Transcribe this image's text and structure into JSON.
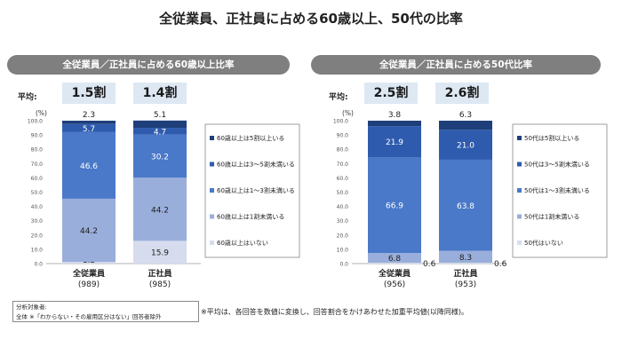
{
  "title": "全従業員、正社員に占める60歳以上、50代の比率",
  "panels": [
    {
      "header": "全従業員／正社員に占める60歳以上比率",
      "avg_label": "平均:",
      "averages": [
        "1.5割",
        "1.4割"
      ]
    },
    {
      "header": "全従業員／正社員に占める50代比率",
      "avg_label": "平均:",
      "averages": [
        "2.5割",
        "2.6割"
      ]
    }
  ],
  "note": {
    "line1": "分析対象者:",
    "line2": "全体 ※「わからない・その雇用区分はない」回答者除外"
  },
  "footnote": "※平均は、各回答を数値に変換し、回答割合をかけあわせた加重平均値(以降同様)。",
  "colors": {
    "s1": "#1f3f7a",
    "s2": "#2f5bae",
    "s3": "#4a79c9",
    "s4": "#9aaedb",
    "s5": "#d6dcee"
  },
  "chart_data": [
    {
      "type": "bar",
      "stacked": true,
      "ylabel": "(%)",
      "ylim": [
        0,
        100
      ],
      "yticks": [
        "0.0",
        "10.0",
        "20.0",
        "30.0",
        "40.0",
        "50.0",
        "60.0",
        "70.0",
        "80.0",
        "90.0",
        "100.0"
      ],
      "categories": [
        "全従業員",
        "正社員"
      ],
      "category_n": [
        "(989)",
        "(985)"
      ],
      "series": [
        {
          "name": "60歳以上はいない",
          "values": [
            1.2,
            15.9
          ]
        },
        {
          "name": "60歳以上は1割未満いる",
          "values": [
            44.2,
            44.2
          ]
        },
        {
          "name": "60歳以上は1～3割未満いる",
          "values": [
            46.6,
            30.2
          ]
        },
        {
          "name": "60歳以上は3～5割未満いる",
          "values": [
            5.7,
            4.7
          ]
        },
        {
          "name": "60歳以上は5割以上いる",
          "values": [
            2.3,
            5.1
          ]
        }
      ],
      "legend": [
        "60歳以上は5割以上いる",
        "60歳以上は3～5割未満いる",
        "60歳以上は1～3割未満いる",
        "60歳以上は1割未満いる",
        "60歳以上はいない"
      ]
    },
    {
      "type": "bar",
      "stacked": true,
      "ylabel": "(%)",
      "ylim": [
        0,
        100
      ],
      "yticks": [
        "0.0",
        "10.0",
        "20.0",
        "30.0",
        "40.0",
        "50.0",
        "60.0",
        "70.0",
        "80.0",
        "90.0",
        "100.0"
      ],
      "categories": [
        "全従業員",
        "正社員"
      ],
      "category_n": [
        "(956)",
        "(953)"
      ],
      "series": [
        {
          "name": "50代はいない",
          "values": [
            0.6,
            0.6
          ]
        },
        {
          "name": "50代は1割未満いる",
          "values": [
            6.8,
            8.3
          ]
        },
        {
          "name": "50代は1～3割未満いる",
          "values": [
            66.9,
            63.8
          ]
        },
        {
          "name": "50代は3～5割未満いる",
          "values": [
            21.9,
            21.0
          ]
        },
        {
          "name": "50代は5割以上いる",
          "values": [
            3.8,
            6.3
          ]
        }
      ],
      "legend": [
        "50代は5割以上いる",
        "50代は3～5割未満いる",
        "50代は1～3割未満いる",
        "50代は1割未満いる",
        "50代はいない"
      ]
    }
  ]
}
